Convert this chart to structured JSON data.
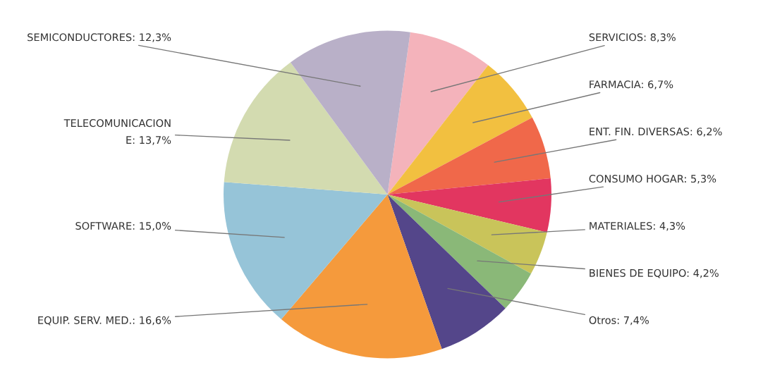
{
  "chart_data": {
    "type": "pie",
    "categories": [
      "SERVICIOS",
      "FARMACIA",
      "ENT. FIN. DIVERSAS",
      "CONSUMO HOGAR",
      "MATERIALES",
      "BIENES DE EQUIPO",
      "Otros",
      "EQUIP. SERV. MED.",
      "SOFTWARE",
      "TELECOMUNICACIONE",
      "SEMICONDUCTORES"
    ],
    "values": [
      8.3,
      6.7,
      6.2,
      5.3,
      4.3,
      4.2,
      7.4,
      16.6,
      15.0,
      13.7,
      12.3
    ],
    "value_labels": [
      "8,3%",
      "6,7%",
      "6,2%",
      "5,3%",
      "4,3%",
      "4,2%",
      "7,4%",
      "16,6%",
      "15,0%",
      "13,7%",
      "12,3%"
    ],
    "colors": [
      "#f4b3bb",
      "#f2c040",
      "#f0684a",
      "#e23660",
      "#c9c45a",
      "#8ab878",
      "#54468a",
      "#f59a3c",
      "#96c4d8",
      "#d3dbb0",
      "#b9b0c8"
    ]
  }
}
